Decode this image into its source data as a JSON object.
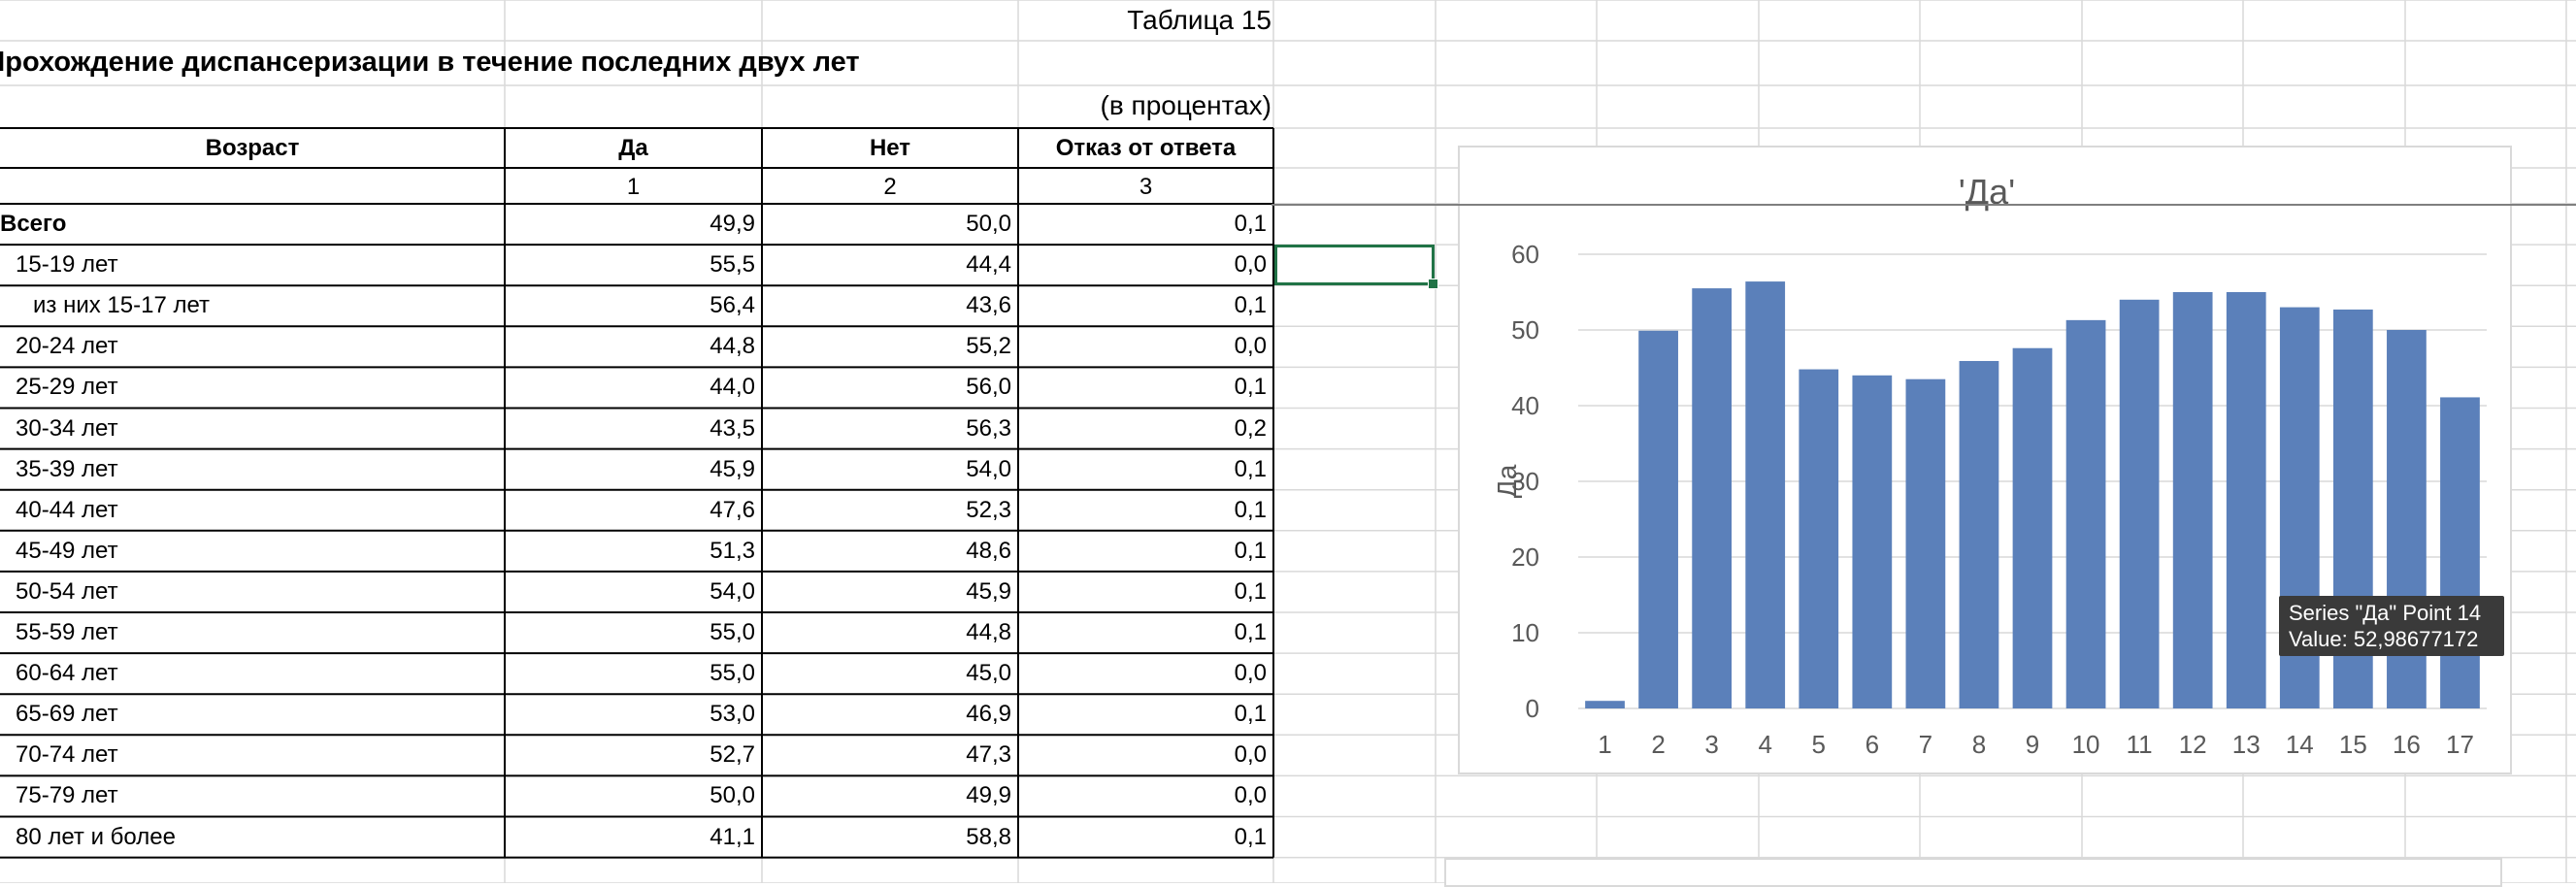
{
  "table": {
    "table_number": "Таблица 15",
    "title": "Прохождение диспансеризации в течение последних двух лет",
    "units": "(в процентах)",
    "headers": [
      "Возраст",
      "Да",
      "Нет",
      "Отказ от ответа"
    ],
    "column_numbers": [
      "1",
      "2",
      "3"
    ],
    "rows": [
      {
        "label": "Всего",
        "da": "49,9",
        "net": "50,0",
        "otkaz": "0,1"
      },
      {
        "label": "15-19 лет",
        "da": "55,5",
        "net": "44,4",
        "otkaz": "0,0"
      },
      {
        "label": "из них 15-17 лет",
        "da": "56,4",
        "net": "43,6",
        "otkaz": "0,1"
      },
      {
        "label": "20-24 лет",
        "da": "44,8",
        "net": "55,2",
        "otkaz": "0,0"
      },
      {
        "label": "25-29 лет",
        "da": "44,0",
        "net": "56,0",
        "otkaz": "0,1"
      },
      {
        "label": "30-34 лет",
        "da": "43,5",
        "net": "56,3",
        "otkaz": "0,2"
      },
      {
        "label": "35-39 лет",
        "da": "45,9",
        "net": "54,0",
        "otkaz": "0,1"
      },
      {
        "label": "40-44 лет",
        "da": "47,6",
        "net": "52,3",
        "otkaz": "0,1"
      },
      {
        "label": "45-49 лет",
        "da": "51,3",
        "net": "48,6",
        "otkaz": "0,1"
      },
      {
        "label": "50-54 лет",
        "da": "54,0",
        "net": "45,9",
        "otkaz": "0,1"
      },
      {
        "label": "55-59 лет",
        "da": "55,0",
        "net": "44,8",
        "otkaz": "0,1"
      },
      {
        "label": "60-64 лет",
        "da": "55,0",
        "net": "45,0",
        "otkaz": "0,0"
      },
      {
        "label": "65-69 лет",
        "da": "53,0",
        "net": "46,9",
        "otkaz": "0,1"
      },
      {
        "label": "70-74 лет",
        "da": "52,7",
        "net": "47,3",
        "otkaz": "0,0"
      },
      {
        "label": "75-79 лет",
        "da": "50,0",
        "net": "49,9",
        "otkaz": "0,0"
      },
      {
        "label": "80 лет и более",
        "da": "41,1",
        "net": "58,8",
        "otkaz": "0,1"
      }
    ]
  },
  "chart_data": {
    "type": "bar",
    "title": "'Да'",
    "xlabel": "",
    "ylabel": "Да",
    "categories": [
      "1",
      "2",
      "3",
      "4",
      "5",
      "6",
      "7",
      "8",
      "9",
      "10",
      "11",
      "12",
      "13",
      "14",
      "15",
      "16",
      "17"
    ],
    "values": [
      1,
      49.9,
      55.5,
      56.4,
      44.8,
      44.0,
      43.5,
      45.9,
      47.6,
      51.3,
      54.0,
      55.0,
      55.0,
      53.0,
      52.7,
      50.0,
      41.1
    ],
    "ylim": [
      0,
      60
    ],
    "yticks": [
      0,
      10,
      20,
      30,
      40,
      50,
      60
    ],
    "grid": true,
    "bar_color": "#5b80ba"
  },
  "tooltip": {
    "line1": "Series \"Да\" Point 14",
    "line2": "Value: 52,98677172"
  },
  "colors": {
    "selection": "#217346",
    "gridline": "#d9d9d9",
    "table_border": "#000000"
  }
}
